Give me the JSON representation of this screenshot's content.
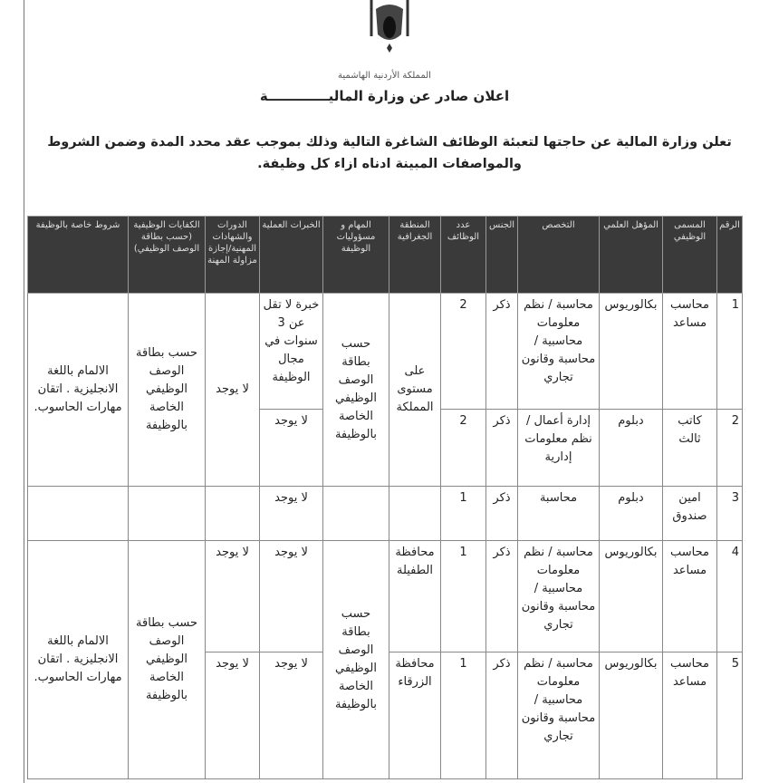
{
  "header": {
    "emblem": "Jordan royal coat of arms",
    "kingdom": "المملكة الأردنية الهاشمية",
    "title": "اعلان صادر عن وزارة الماليـــــــــــــة",
    "intro": "تعلن وزارة المالية عن حاجتها لتعبئة الوظائف الشاغرة التالية وذلك بموجب عقد محدد المدة وضمن الشروط والمواصفات المبينة ادناه ازاء كل وظيفة."
  },
  "table": {
    "columns": [
      "الرقم",
      "المسمى الوظيفي",
      "المؤهل العلمي",
      "التخصص",
      "الجنس",
      "عدد الوظائف",
      "المنطقة الجغرافية",
      "المهام و مسؤوليات الوظيفة",
      "الخبرات العملية",
      "الدورات والشهادات المهنية/إجازة مزاولة المهنة",
      "الكفايات الوظيفية (حسب بطاقة الوصف الوظيفي)",
      "شروط خاصة بالوظيفة"
    ],
    "rows": [
      {
        "no": "1",
        "title": "محاسب مساعد",
        "qual": "بكالوريوس",
        "major": "محاسبة / نظم معلومات محاسبية / محاسبة وقانون تجاري",
        "gender": "ذكر",
        "count": "2",
        "experience": "خبرة لا تقل عن 3 سنوات في مجال الوظيفة"
      },
      {
        "no": "2",
        "title": "كاتب ثالث",
        "qual": "دبلوم",
        "major": "إدارة أعمال / نظم معلومات إدارية",
        "gender": "ذكر",
        "count": "2",
        "experience": "لا يوجد"
      },
      {
        "no": "3",
        "title": "امين صندوق",
        "qual": "دبلوم",
        "major": "محاسبة",
        "gender": "ذكر",
        "count": "1",
        "experience": "لا يوجد"
      },
      {
        "no": "4",
        "title": "محاسب مساعد",
        "qual": "بكالوريوس",
        "major": "محاسبة / نظم معلومات محاسبية / محاسبة وقانون تجاري",
        "gender": "ذكر",
        "count": "1",
        "region": "محافظة الطفيلة",
        "experience": "لا يوجد",
        "courses": "لا يوجد"
      },
      {
        "no": "5",
        "title": "محاسب مساعد",
        "qual": "بكالوريوس",
        "major": "محاسبة / نظم معلومات محاسبية / محاسبة وقانون تجاري",
        "gender": "ذكر",
        "count": "1",
        "region": "محافظة الزرقاء",
        "experience": "لا يوجد",
        "courses": "لا يوجد"
      }
    ],
    "group1": {
      "region": "على مستوى المملكة",
      "duties": "حسب بطاقة الوصف الوظيفي الخاصة بالوظيفة",
      "courses": "لا يوجد",
      "competencies": "حسب بطاقة الوصف الوظيفي الخاصة بالوظيفة",
      "special": "الالمام باللغة الانجليزية . اتقان مهارات الحاسوب."
    },
    "group2": {
      "duties": "حسب بطاقة الوصف الوظيفي الخاصة بالوظيفة",
      "competencies": "حسب بطاقة الوصف الوظيفي الخاصة بالوظيفة",
      "special": "الالمام باللغة الانجليزية . اتقان مهارات الحاسوب."
    }
  }
}
